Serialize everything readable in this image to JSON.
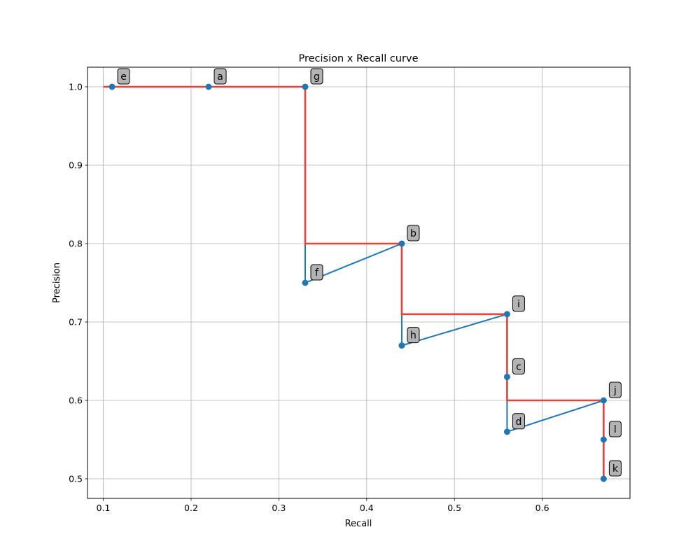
{
  "chart_data": {
    "type": "line",
    "title": "Precision x Recall curve",
    "xlabel": "Recall",
    "ylabel": "Precision",
    "xlim": [
      0.082,
      0.7
    ],
    "ylim": [
      0.475,
      1.025
    ],
    "x_ticks": [
      0.1,
      0.2,
      0.3,
      0.4,
      0.5,
      0.6
    ],
    "y_ticks": [
      0.5,
      0.6,
      0.7,
      0.8,
      0.9,
      1.0
    ],
    "x_tick_labels": [
      "0.1",
      "0.2",
      "0.3",
      "0.4",
      "0.5",
      "0.6"
    ],
    "y_tick_labels": [
      "0.5",
      "0.6",
      "0.7",
      "0.8",
      "0.9",
      "1.0"
    ],
    "grid": true,
    "points": [
      {
        "label": "e",
        "recall": 0.11,
        "precision": 1.0
      },
      {
        "label": "a",
        "recall": 0.22,
        "precision": 1.0
      },
      {
        "label": "g",
        "recall": 0.33,
        "precision": 1.0
      },
      {
        "label": "f",
        "recall": 0.33,
        "precision": 0.75
      },
      {
        "label": "b",
        "recall": 0.44,
        "precision": 0.8
      },
      {
        "label": "h",
        "recall": 0.44,
        "precision": 0.67
      },
      {
        "label": "i",
        "recall": 0.56,
        "precision": 0.71
      },
      {
        "label": "c",
        "recall": 0.56,
        "precision": 0.63
      },
      {
        "label": "d",
        "recall": 0.56,
        "precision": 0.56
      },
      {
        "label": "j",
        "recall": 0.67,
        "precision": 0.6
      },
      {
        "label": "l",
        "recall": 0.67,
        "precision": 0.55
      },
      {
        "label": "k",
        "recall": 0.67,
        "precision": 0.5
      }
    ],
    "series": [
      {
        "color": "#1f77b4",
        "x": [
          0.11,
          0.22,
          0.33,
          0.33,
          0.44,
          0.44,
          0.56,
          0.56,
          0.56,
          0.67,
          0.67,
          0.67
        ],
        "y": [
          1.0,
          1.0,
          1.0,
          0.75,
          0.8,
          0.67,
          0.71,
          0.63,
          0.56,
          0.6,
          0.55,
          0.5
        ]
      },
      {
        "color": "#e8413a",
        "x": [
          0.1,
          0.33,
          0.33,
          0.44,
          0.44,
          0.56,
          0.56,
          0.67,
          0.67
        ],
        "y": [
          1.0,
          1.0,
          0.8,
          0.8,
          0.71,
          0.71,
          0.6,
          0.6,
          0.5
        ]
      }
    ],
    "label_box_color": "#b3b3b3"
  }
}
